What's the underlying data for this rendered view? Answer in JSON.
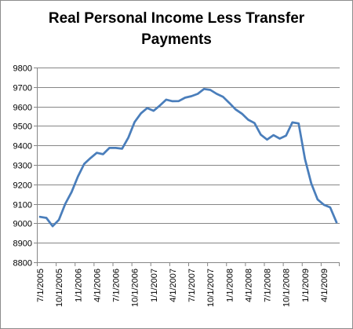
{
  "chart_data": {
    "type": "line",
    "title_line1": "Real Personal Income Less Transfer",
    "title_line2": "Payments",
    "xlabel": "",
    "ylabel": "",
    "ylim": [
      8800,
      9800
    ],
    "yticks": [
      8800,
      8900,
      9000,
      9100,
      9200,
      9300,
      9400,
      9500,
      9600,
      9700,
      9800
    ],
    "grid": "horizontal",
    "legend": "none",
    "x_tick_labels": [
      "7/1/2005",
      "10/1/2005",
      "1/1/2006",
      "4/1/2006",
      "7/1/2006",
      "10/1/2006",
      "1/1/2007",
      "4/1/2007",
      "7/1/2007",
      "10/1/2007",
      "1/1/2008",
      "4/1/2008",
      "7/1/2008",
      "10/1/2008",
      "1/1/2009",
      "4/1/2009"
    ],
    "x": [
      "2005-07-01",
      "2005-08-01",
      "2005-09-01",
      "2005-10-01",
      "2005-11-01",
      "2005-12-01",
      "2006-01-01",
      "2006-02-01",
      "2006-03-01",
      "2006-04-01",
      "2006-05-01",
      "2006-06-01",
      "2006-07-01",
      "2006-08-01",
      "2006-09-01",
      "2006-10-01",
      "2006-11-01",
      "2006-12-01",
      "2007-01-01",
      "2007-02-01",
      "2007-03-01",
      "2007-04-01",
      "2007-05-01",
      "2007-06-01",
      "2007-07-01",
      "2007-08-01",
      "2007-09-01",
      "2007-10-01",
      "2007-11-01",
      "2007-12-01",
      "2008-01-01",
      "2008-02-01",
      "2008-03-01",
      "2008-04-01",
      "2008-05-01",
      "2008-06-01",
      "2008-07-01",
      "2008-08-01",
      "2008-09-01",
      "2008-10-01",
      "2008-11-01",
      "2008-12-01",
      "2009-01-01",
      "2009-02-01",
      "2009-03-01",
      "2009-04-01",
      "2009-05-01",
      "2009-06-01"
    ],
    "series": [
      {
        "values": [
          9033,
          9028,
          8985,
          9018,
          9100,
          9160,
          9240,
          9305,
          9335,
          9362,
          9355,
          9387,
          9387,
          9383,
          9440,
          9520,
          9565,
          9592,
          9578,
          9605,
          9635,
          9627,
          9628,
          9645,
          9653,
          9665,
          9690,
          9685,
          9665,
          9650,
          9618,
          9585,
          9563,
          9532,
          9515,
          9455,
          9430,
          9453,
          9435,
          9450,
          9518,
          9513,
          9330,
          9205,
          9122,
          9095,
          9082,
          9005
        ]
      }
    ],
    "colors": {
      "line": "#4a7ebb",
      "grid": "#868686",
      "axis": "#868686"
    }
  }
}
